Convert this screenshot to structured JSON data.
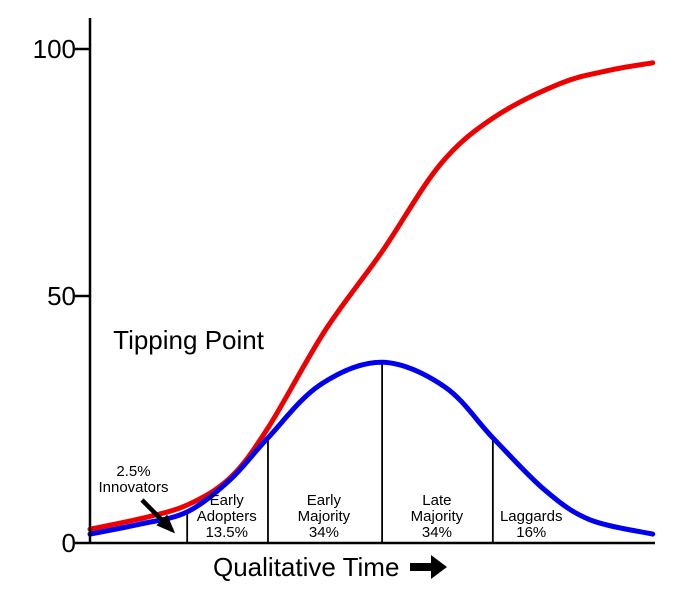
{
  "colors": {
    "red_curve": "#ee0000",
    "blue_curve": "#0000ee",
    "axis": "#000000",
    "text": "#000000",
    "background": "#ffffff"
  },
  "icons": {
    "x_axis_arrow": "right-arrow-icon",
    "innovators_pointer": "down-right-arrow-icon"
  },
  "chart_data": {
    "type": "line",
    "title": "",
    "xlabel": "Qualitative Time",
    "ylabel": "",
    "xlim": [
      0,
      100
    ],
    "ylim": [
      0,
      100
    ],
    "yticks": [
      0,
      50,
      100
    ],
    "grid": false,
    "legend": "none",
    "series": [
      {
        "name": "cumulative-adoption-s-curve",
        "color": "#ee0000",
        "points": [
          [
            0,
            2.8
          ],
          [
            8.8,
            4.9
          ],
          [
            17.2,
            7.7
          ],
          [
            24.8,
            13.2
          ],
          [
            31.5,
            23.3
          ],
          [
            41.6,
            43.0
          ],
          [
            51.7,
            59.0
          ],
          [
            61.9,
            76.5
          ],
          [
            71.3,
            86.0
          ],
          [
            83.2,
            93.0
          ],
          [
            92.0,
            95.7
          ],
          [
            99.6,
            97.2
          ]
        ]
      },
      {
        "name": "adopter-distribution-bell-curve",
        "color": "#0000ee",
        "points": [
          [
            0,
            1.8
          ],
          [
            8.8,
            3.8
          ],
          [
            17.2,
            6.3
          ],
          [
            24.8,
            12.8
          ],
          [
            31.5,
            21.3
          ],
          [
            40.7,
            32.0
          ],
          [
            51.7,
            36.6
          ],
          [
            62.8,
            31.6
          ],
          [
            71.3,
            21.3
          ],
          [
            80.5,
            10.7
          ],
          [
            88.5,
            4.7
          ],
          [
            99.6,
            1.8
          ]
        ]
      }
    ],
    "segment_boundaries": [
      {
        "t": 17.2,
        "top_value": 6.3
      },
      {
        "t": 31.5,
        "top_value": 21.3
      },
      {
        "t": 51.7,
        "top_value": 36.6
      },
      {
        "t": 71.3,
        "top_value": 21.3
      }
    ],
    "segment_labels": [
      {
        "lines": [
          "Early",
          "Adopters",
          "13.5%"
        ],
        "label_t": 24.2
      },
      {
        "lines": [
          "Early",
          "Majority",
          "34%"
        ],
        "label_t": 41.4
      },
      {
        "lines": [
          "Late",
          "Majority",
          "34%"
        ],
        "label_t": 61.4
      },
      {
        "lines": [
          "Laggards",
          "16%"
        ],
        "label_t": 78.1
      }
    ],
    "annotations": {
      "tipping_point": {
        "text": "Tipping Point",
        "t": 4.1,
        "v": 41.0
      },
      "innovators": {
        "lines": [
          "2.5%",
          "Innovators"
        ],
        "t": 7.7,
        "v": 12.7,
        "arrow": {
          "from": {
            "t": 9.2,
            "v": 8.7
          },
          "to": {
            "t": 14.5,
            "v": 2.6
          }
        }
      }
    }
  }
}
